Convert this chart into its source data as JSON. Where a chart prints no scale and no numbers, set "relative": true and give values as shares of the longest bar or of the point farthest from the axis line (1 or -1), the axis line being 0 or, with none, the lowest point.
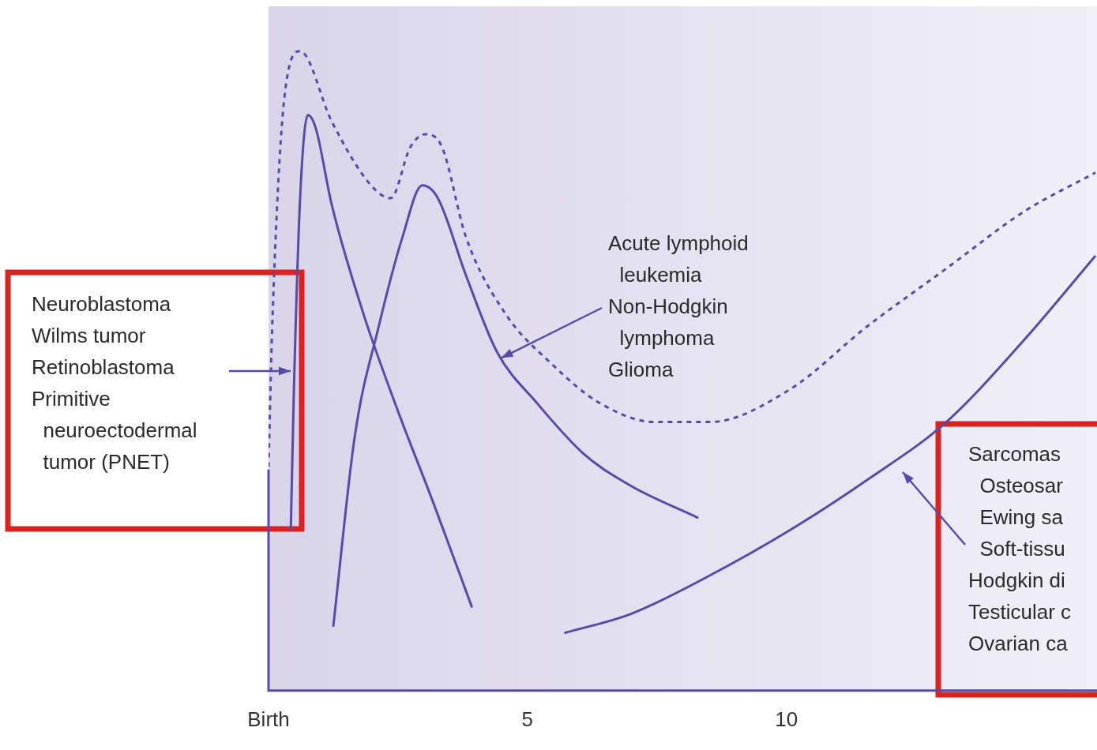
{
  "chart_data": {
    "type": "line",
    "relative": true,
    "marker": "none",
    "legend": false,
    "xlim": [
      0,
      16
    ],
    "xticks": [
      {
        "value": 0,
        "label": "Birth"
      },
      5,
      10
    ],
    "series": [
      {
        "color": "#5a4aa8",
        "line_style": "dashed",
        "x": [
          0,
          0.08,
          0.31,
          0.61,
          1.22,
          1.98,
          2.36,
          2.74,
          3.04,
          3.35,
          3.81,
          4.57,
          5.48,
          6.39,
          7.46,
          8.52,
          10.05,
          11.57,
          13.09,
          14.61,
          15.97
        ],
        "values": [
          0.35,
          0.59,
          0.93,
          1,
          0.89,
          0.79,
          0.77,
          0.85,
          0.87,
          0.85,
          0.71,
          0.59,
          0.51,
          0.45,
          0.42,
          0.42,
          0.47,
          0.57,
          0.66,
          0.75,
          0.81
        ]
      },
      {
        "color": "#5a4aa8",
        "line_style": "solid",
        "x": [
          0.43,
          0.49,
          0.61,
          0.76,
          0.91,
          1.22,
          1.83,
          2.44,
          3.2,
          3.93
        ],
        "values": [
          0.25,
          0.47,
          0.77,
          0.9,
          0.88,
          0.76,
          0.59,
          0.45,
          0.29,
          0.13
        ]
      },
      {
        "color": "#5a4aa8",
        "line_style": "solid",
        "x": [
          1.25,
          1.67,
          2.13,
          2.59,
          2.97,
          3.27,
          3.81,
          4.41,
          5.18,
          6.09,
          7.0,
          8.3
        ],
        "values": [
          0.1,
          0.4,
          0.57,
          0.71,
          0.79,
          0.77,
          0.65,
          0.53,
          0.45,
          0.37,
          0.32,
          0.27
        ]
      },
      {
        "color": "#5a4aa8",
        "line_style": "solid",
        "x": [
          5.71,
          7.0,
          8.52,
          10.05,
          11.57,
          13.09,
          14.61,
          15.97
        ],
        "values": [
          0.09,
          0.12,
          0.18,
          0.25,
          0.33,
          0.42,
          0.55,
          0.68
        ]
      }
    ],
    "annotations": [
      "Neuroblastoma\nWilms tumor\nRetinoblastoma\nPrimitive\n  neuroectodermal\n  tumor (PNET)",
      {
        "text": "Acute lymphoid\n  leukemia\nNon-Hodgkin\n  lymphoma\nGlioma",
        "x": 4.49,
        "y": 0.52
      },
      "Sarcomas\n  Osteosar\n  Ewing sa\n  Soft-tissu\nHodgkin di\nTesticular c\nOvarian ca"
    ]
  }
}
